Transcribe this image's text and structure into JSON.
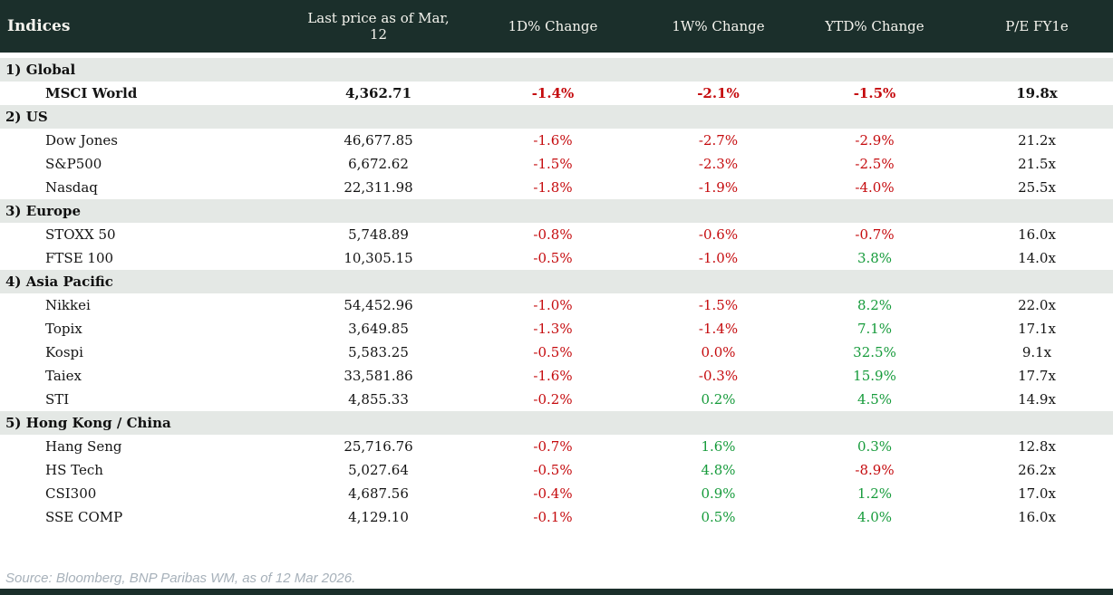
{
  "colors": {
    "header_bg": "#1b2f2b",
    "section_bg": "#e4e8e5",
    "negative": "#c50b0e",
    "positive": "#169b3b",
    "source_text": "#a7b1ba"
  },
  "chart_data": {
    "type": "table",
    "title": "Indices",
    "columns": [
      "Indices",
      "Last price as of Mar, 12",
      "1D% Change",
      "1W% Change",
      "YTD% Change",
      "P/E FY1e"
    ],
    "sections": [
      {
        "label": "1) Global",
        "rows": [
          {
            "name": "MSCI World",
            "bold": true,
            "last_price": "4,362.71",
            "chg_1d": {
              "v": "-1.4%",
              "tone": "neg"
            },
            "chg_1w": {
              "v": "-2.1%",
              "tone": "neg"
            },
            "chg_ytd": {
              "v": "-1.5%",
              "tone": "neg"
            },
            "pe": "19.8x"
          }
        ]
      },
      {
        "label": "2) US",
        "rows": [
          {
            "name": "Dow Jones",
            "bold": false,
            "last_price": "46,677.85",
            "chg_1d": {
              "v": "-1.6%",
              "tone": "neg"
            },
            "chg_1w": {
              "v": "-2.7%",
              "tone": "neg"
            },
            "chg_ytd": {
              "v": "-2.9%",
              "tone": "neg"
            },
            "pe": "21.2x"
          },
          {
            "name": "S&P500",
            "bold": false,
            "last_price": "6,672.62",
            "chg_1d": {
              "v": "-1.5%",
              "tone": "neg"
            },
            "chg_1w": {
              "v": "-2.3%",
              "tone": "neg"
            },
            "chg_ytd": {
              "v": "-2.5%",
              "tone": "neg"
            },
            "pe": "21.5x"
          },
          {
            "name": "Nasdaq",
            "bold": false,
            "last_price": "22,311.98",
            "chg_1d": {
              "v": "-1.8%",
              "tone": "neg"
            },
            "chg_1w": {
              "v": "-1.9%",
              "tone": "neg"
            },
            "chg_ytd": {
              "v": "-4.0%",
              "tone": "neg"
            },
            "pe": "25.5x"
          }
        ]
      },
      {
        "label": "3) Europe",
        "rows": [
          {
            "name": "STOXX 50",
            "bold": false,
            "last_price": "5,748.89",
            "chg_1d": {
              "v": "-0.8%",
              "tone": "neg"
            },
            "chg_1w": {
              "v": "-0.6%",
              "tone": "neg"
            },
            "chg_ytd": {
              "v": "-0.7%",
              "tone": "neg"
            },
            "pe": "16.0x"
          },
          {
            "name": "FTSE 100",
            "bold": false,
            "last_price": "10,305.15",
            "chg_1d": {
              "v": "-0.5%",
              "tone": "neg"
            },
            "chg_1w": {
              "v": "-1.0%",
              "tone": "neg"
            },
            "chg_ytd": {
              "v": "3.8%",
              "tone": "pos"
            },
            "pe": "14.0x"
          }
        ]
      },
      {
        "label": "4) Asia Pacific",
        "rows": [
          {
            "name": "Nikkei",
            "bold": false,
            "last_price": "54,452.96",
            "chg_1d": {
              "v": "-1.0%",
              "tone": "neg"
            },
            "chg_1w": {
              "v": "-1.5%",
              "tone": "neg"
            },
            "chg_ytd": {
              "v": "8.2%",
              "tone": "pos"
            },
            "pe": "22.0x"
          },
          {
            "name": "Topix",
            "bold": false,
            "last_price": "3,649.85",
            "chg_1d": {
              "v": "-1.3%",
              "tone": "neg"
            },
            "chg_1w": {
              "v": "-1.4%",
              "tone": "neg"
            },
            "chg_ytd": {
              "v": "7.1%",
              "tone": "pos"
            },
            "pe": "17.1x"
          },
          {
            "name": "Kospi",
            "bold": false,
            "last_price": "5,583.25",
            "chg_1d": {
              "v": "-0.5%",
              "tone": "neg"
            },
            "chg_1w": {
              "v": "0.0%",
              "tone": "neg"
            },
            "chg_ytd": {
              "v": "32.5%",
              "tone": "pos"
            },
            "pe": "9.1x"
          },
          {
            "name": "Taiex",
            "bold": false,
            "last_price": "33,581.86",
            "chg_1d": {
              "v": "-1.6%",
              "tone": "neg"
            },
            "chg_1w": {
              "v": "-0.3%",
              "tone": "neg"
            },
            "chg_ytd": {
              "v": "15.9%",
              "tone": "pos"
            },
            "pe": "17.7x"
          },
          {
            "name": "STI",
            "bold": false,
            "last_price": "4,855.33",
            "chg_1d": {
              "v": "-0.2%",
              "tone": "neg"
            },
            "chg_1w": {
              "v": "0.2%",
              "tone": "pos"
            },
            "chg_ytd": {
              "v": "4.5%",
              "tone": "pos"
            },
            "pe": "14.9x"
          }
        ]
      },
      {
        "label": "5) Hong Kong / China",
        "rows": [
          {
            "name": "Hang Seng",
            "bold": false,
            "last_price": "25,716.76",
            "chg_1d": {
              "v": "-0.7%",
              "tone": "neg"
            },
            "chg_1w": {
              "v": "1.6%",
              "tone": "pos"
            },
            "chg_ytd": {
              "v": "0.3%",
              "tone": "pos"
            },
            "pe": "12.8x"
          },
          {
            "name": "HS Tech",
            "bold": false,
            "last_price": "5,027.64",
            "chg_1d": {
              "v": "-0.5%",
              "tone": "neg"
            },
            "chg_1w": {
              "v": "4.8%",
              "tone": "pos"
            },
            "chg_ytd": {
              "v": "-8.9%",
              "tone": "neg"
            },
            "pe": "26.2x"
          },
          {
            "name": "CSI300",
            "bold": false,
            "last_price": "4,687.56",
            "chg_1d": {
              "v": "-0.4%",
              "tone": "neg"
            },
            "chg_1w": {
              "v": "0.9%",
              "tone": "pos"
            },
            "chg_ytd": {
              "v": "1.2%",
              "tone": "pos"
            },
            "pe": "17.0x"
          },
          {
            "name": "SSE COMP",
            "bold": false,
            "last_price": "4,129.10",
            "chg_1d": {
              "v": "-0.1%",
              "tone": "neg"
            },
            "chg_1w": {
              "v": "0.5%",
              "tone": "pos"
            },
            "chg_ytd": {
              "v": "4.0%",
              "tone": "pos"
            },
            "pe": "16.0x"
          }
        ]
      }
    ],
    "source": "Source: Bloomberg, BNP Paribas WM, as of 12 Mar 2026."
  }
}
